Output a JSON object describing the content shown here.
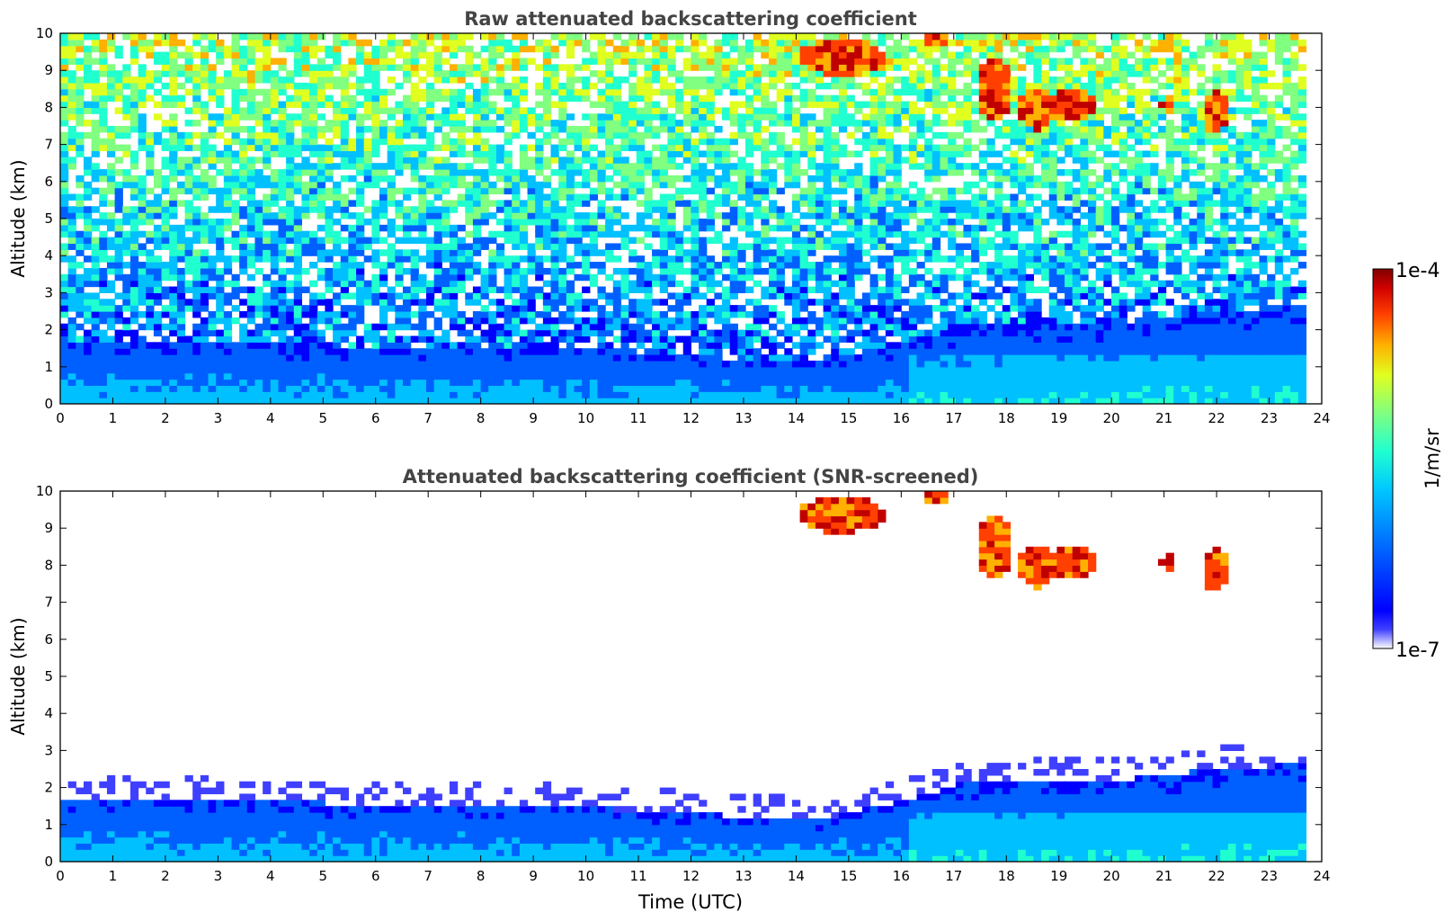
{
  "chart_data": [
    {
      "type": "heatmap",
      "title": "Raw attenuated backscattering coefficient",
      "xlabel": "",
      "ylabel": "Altitude (km)",
      "xlim": [
        0,
        24
      ],
      "ylim": [
        0,
        10
      ],
      "xticks": [
        "0",
        "1",
        "2",
        "3",
        "4",
        "5",
        "6",
        "7",
        "8",
        "9",
        "10",
        "11",
        "12",
        "13",
        "14",
        "15",
        "16",
        "17",
        "18",
        "19",
        "20",
        "21",
        "22",
        "23",
        "24"
      ],
      "yticks": [
        "0",
        "1",
        "2",
        "3",
        "4",
        "5",
        "6",
        "7",
        "8",
        "9",
        "10"
      ],
      "data_time_range": [
        0,
        23.7
      ],
      "features": [
        {
          "desc": "noisy background",
          "alt_range": [
            1.5,
            10
          ]
        },
        {
          "desc": "boundary layer",
          "time_range": [
            0,
            23.7
          ],
          "alt_range": [
            0,
            1.7
          ]
        },
        {
          "desc": "high cirrus cloud",
          "time_range": [
            14,
            22.2
          ],
          "alt_range": [
            7.3,
            10
          ]
        },
        {
          "desc": "aerosol layer",
          "time_range": [
            16,
            23.7
          ],
          "alt_range": [
            0,
            2.6
          ]
        }
      ]
    },
    {
      "type": "heatmap",
      "title": "Attenuated backscattering coefficient (SNR-screened)",
      "xlabel": "Time (UTC)",
      "ylabel": "Altitude (km)",
      "xlim": [
        0,
        24
      ],
      "ylim": [
        0,
        10
      ],
      "xticks": [
        "0",
        "1",
        "2",
        "3",
        "4",
        "5",
        "6",
        "7",
        "8",
        "9",
        "10",
        "11",
        "12",
        "13",
        "14",
        "15",
        "16",
        "17",
        "18",
        "19",
        "20",
        "21",
        "22",
        "23",
        "24"
      ],
      "yticks": [
        "0",
        "1",
        "2",
        "3",
        "4",
        "5",
        "6",
        "7",
        "8",
        "9",
        "10"
      ],
      "data_time_range": [
        0,
        23.7
      ],
      "features": [
        {
          "desc": "boundary layer",
          "time_range": [
            0,
            23.7
          ],
          "alt_range": [
            0,
            2.6
          ]
        },
        {
          "desc": "high cirrus cloud",
          "time_range": [
            14.5,
            22.2
          ],
          "alt_range": [
            7.3,
            9.9
          ]
        }
      ]
    }
  ],
  "colorbar": {
    "label": "1/m/sr",
    "max_label": "1e-4",
    "min_label": "1e-7",
    "scale": "log",
    "range": [
      1e-07,
      0.0001
    ],
    "colormap": [
      "#ffffff",
      "#3f3fff",
      "#0000ff",
      "#0060ff",
      "#00c0ff",
      "#20ffd0",
      "#80ff80",
      "#e0ff20",
      "#ffb000",
      "#ff4000",
      "#c00000",
      "#800000"
    ]
  }
}
